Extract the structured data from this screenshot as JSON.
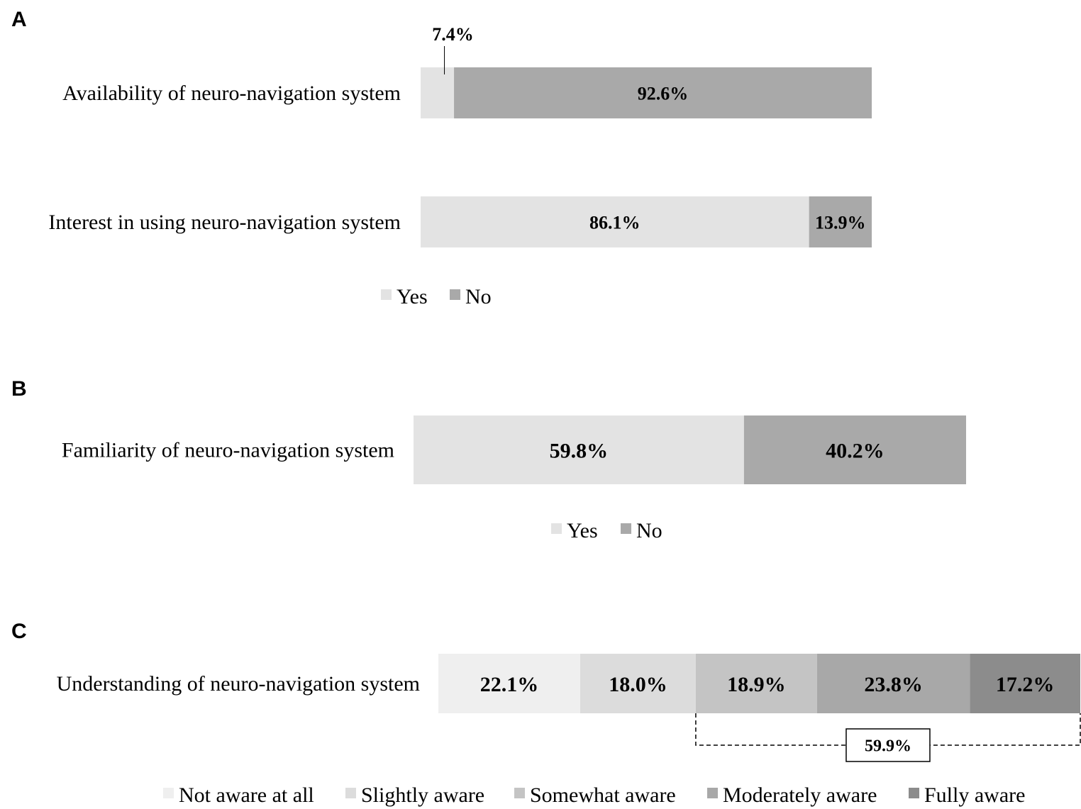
{
  "colors": {
    "yes": "#e3e3e3",
    "no": "#a9a9a9",
    "not_aware": "#efefef",
    "slightly": "#dcdcdc",
    "somewhat": "#c4c4c4",
    "moderately": "#a8a8a8",
    "fully": "#8c8c8c"
  },
  "chart_data": [
    {
      "type": "bar",
      "panel": "A",
      "orientation": "horizontal",
      "stacked": true,
      "categories": [
        "Availability of neuro-navigation system",
        "Interest in using neuro-navigation system"
      ],
      "series": [
        {
          "name": "Yes",
          "values": [
            7.4,
            86.1
          ],
          "labels": [
            "7.4%",
            "86.1%"
          ],
          "color_key": "yes"
        },
        {
          "name": "No",
          "values": [
            92.6,
            13.9
          ],
          "labels": [
            "92.6%",
            "13.9%"
          ],
          "color_key": "no"
        }
      ],
      "legend": [
        "Yes",
        "No"
      ],
      "legend_position": "bottom"
    },
    {
      "type": "bar",
      "panel": "B",
      "orientation": "horizontal",
      "stacked": true,
      "categories": [
        "Familiarity of neuro-navigation system"
      ],
      "series": [
        {
          "name": "Yes",
          "values": [
            59.8
          ],
          "labels": [
            "59.8%"
          ],
          "color_key": "yes"
        },
        {
          "name": "No",
          "values": [
            40.2
          ],
          "labels": [
            "40.2%"
          ],
          "color_key": "no"
        }
      ],
      "legend": [
        "Yes",
        "No"
      ],
      "legend_position": "bottom"
    },
    {
      "type": "bar",
      "panel": "C",
      "orientation": "horizontal",
      "stacked": true,
      "categories": [
        "Understanding of neuro-navigation system"
      ],
      "series": [
        {
          "name": "Not aware at all",
          "values": [
            22.1
          ],
          "labels": [
            "22.1%"
          ],
          "color_key": "not_aware"
        },
        {
          "name": "Slightly aware",
          "values": [
            18.0
          ],
          "labels": [
            "18.0%"
          ],
          "color_key": "slightly"
        },
        {
          "name": "Somewhat aware",
          "values": [
            18.9
          ],
          "labels": [
            "18.9%"
          ],
          "color_key": "somewhat"
        },
        {
          "name": "Moderately aware",
          "values": [
            23.8
          ],
          "labels": [
            "23.8%"
          ],
          "color_key": "moderately"
        },
        {
          "name": "Fully aware",
          "values": [
            17.2
          ],
          "labels": [
            "17.2%"
          ],
          "color_key": "fully"
        }
      ],
      "bracket": {
        "from_series": 2,
        "to_series": 4,
        "label": "59.9%"
      },
      "legend": [
        "Not aware at all",
        "Slightly aware",
        "Somewhat aware",
        "Moderately aware",
        "Fully aware"
      ],
      "legend_position": "bottom"
    }
  ]
}
